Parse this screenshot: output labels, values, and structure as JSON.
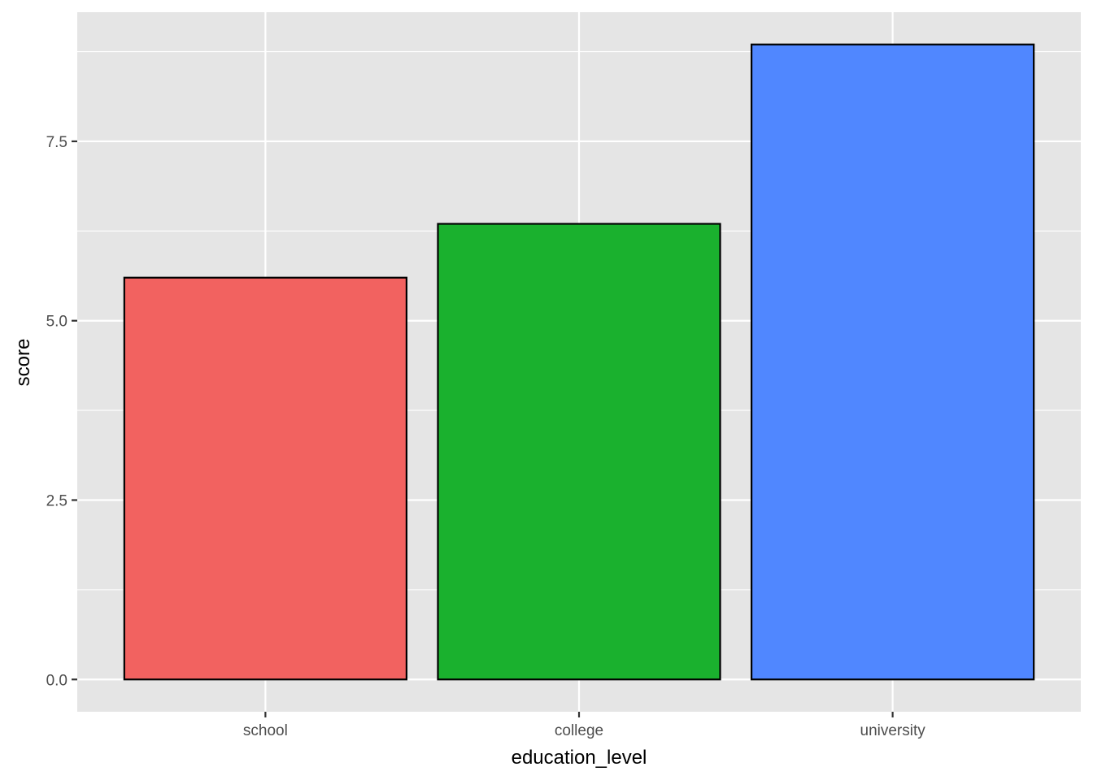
{
  "chart_data": {
    "type": "bar",
    "categories": [
      "school",
      "college",
      "university"
    ],
    "values": [
      5.6,
      6.35,
      8.85
    ],
    "xlabel": "education_level",
    "ylabel": "score",
    "ylim": [
      -0.45,
      9.3
    ],
    "yticks": [
      0.0,
      2.5,
      5.0,
      7.5
    ],
    "ytick_labels": [
      "0.0",
      "2.5",
      "5.0",
      "7.5"
    ],
    "grid": true,
    "legend": "none",
    "colors": {
      "panel_background": "#e5e5e5",
      "grid": "#ffffff",
      "bar_outline": "#000000",
      "bars": [
        "#f26260",
        "#1ab12e",
        "#5087ff"
      ]
    }
  }
}
